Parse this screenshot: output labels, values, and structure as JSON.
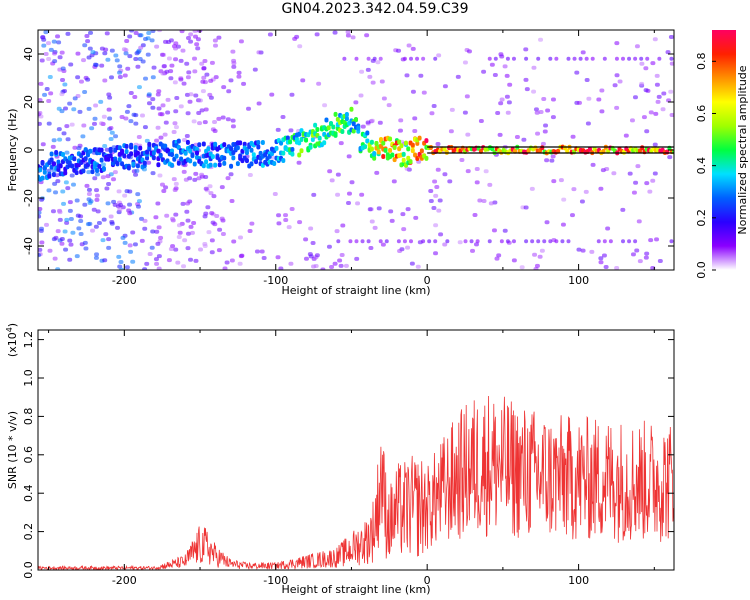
{
  "title": "GN04.2023.342.04.59.C39",
  "colors": {
    "snr_line": "#ee3333",
    "trace_line": "#000000"
  },
  "chart_data": [
    {
      "type": "heatmap",
      "xlabel": "Height of straight line (km)",
      "ylabel": "Frequency (Hz)",
      "xlim": [
        -257,
        163
      ],
      "ylim": [
        -50,
        50
      ],
      "x_ticks": [
        -200,
        -100,
        0,
        100
      ],
      "x_tick_labels": [
        "-200",
        "-100",
        "0",
        "100"
      ],
      "y_ticks": [
        -40,
        -20,
        0,
        20,
        40
      ],
      "y_tick_labels": [
        "-40",
        "-20",
        "0",
        "20",
        "40"
      ],
      "colorbar": {
        "label": "Normalized spectral amplitude",
        "range": [
          0,
          0.92
        ],
        "ticks": [
          0.0,
          0.2,
          0.4,
          0.6,
          0.8
        ],
        "tick_labels": [
          "0.0",
          "0.2",
          "0.4",
          "0.6",
          "0.8"
        ],
        "colormap": [
          "#ffffff",
          "#8a00ff",
          "#2a00ff",
          "#0060ff",
          "#00e0ff",
          "#00ff40",
          "#a0ff00",
          "#ffff00",
          "#ff9000",
          "#ff2000",
          "#ff0060"
        ]
      },
      "ridge": {
        "height_km": [
          -257,
          -240,
          -220,
          -200,
          -180,
          -160,
          -140,
          -120,
          -100,
          -90,
          -80,
          -70,
          -60,
          -55,
          -50,
          -45,
          -40,
          -35,
          -30,
          -25,
          -20,
          -15,
          -10,
          -5,
          0,
          50,
          100,
          163
        ],
        "frequency_hz": [
          -8,
          -5,
          -4,
          -3,
          -2,
          -1,
          -2,
          -2,
          -1,
          1,
          4,
          7,
          10,
          12,
          12,
          5,
          3,
          1,
          1,
          0,
          -1,
          -2,
          0,
          1,
          0,
          0,
          0,
          0
        ],
        "amplitude": [
          0.3,
          0.3,
          0.3,
          0.3,
          0.3,
          0.32,
          0.33,
          0.33,
          0.35,
          0.45,
          0.55,
          0.5,
          0.55,
          0.5,
          0.5,
          0.45,
          0.5,
          0.6,
          0.8,
          0.85,
          0.8,
          0.6,
          0.85,
          0.85,
          0.85,
          0.85,
          0.85,
          0.85
        ]
      }
    },
    {
      "type": "line",
      "xlabel": "Height of straight line (km)",
      "ylabel": "SNR (10 * v/v)",
      "y_scale_label": "(x10",
      "y_scale_exp": "4",
      "y_scale_close": ")",
      "xlim": [
        -257,
        163
      ],
      "ylim": [
        0,
        1.25
      ],
      "x_ticks": [
        -200,
        -100,
        0,
        100
      ],
      "x_tick_labels": [
        "-200",
        "-100",
        "0",
        "100"
      ],
      "y_ticks": [
        0,
        0.2,
        0.4,
        0.6,
        0.8,
        1.0,
        1.2
      ],
      "y_tick_labels": [
        "0.0",
        "0.2",
        "0.4",
        "0.6",
        "0.8",
        "1.0",
        "1.2"
      ],
      "series": [
        {
          "x": [
            -257,
            -220,
            -180,
            -160,
            -155,
            -150,
            -145,
            -140,
            -130,
            -120,
            -110,
            -100,
            -90,
            -80,
            -70,
            -60,
            -50,
            -40,
            -35,
            -32,
            -30,
            -28,
            -25,
            -20,
            -10,
            0,
            10,
            20,
            30,
            40,
            50,
            60,
            80,
            100,
            120,
            140,
            160,
            163
          ],
          "y": [
            0.01,
            0.01,
            0.01,
            0.04,
            0.08,
            0.12,
            0.11,
            0.07,
            0.03,
            0.02,
            0.02,
            0.02,
            0.03,
            0.04,
            0.05,
            0.06,
            0.1,
            0.14,
            0.2,
            0.35,
            0.5,
            0.3,
            0.22,
            0.28,
            0.3,
            0.3,
            0.38,
            0.45,
            0.5,
            0.52,
            0.5,
            0.48,
            0.45,
            0.44,
            0.44,
            0.43,
            0.43,
            0.43
          ]
        }
      ]
    }
  ]
}
